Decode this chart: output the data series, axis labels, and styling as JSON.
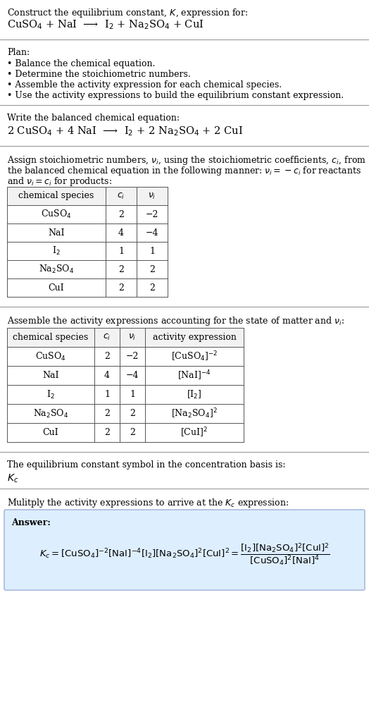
{
  "title_line1": "Construct the equilibrium constant, $K$, expression for:",
  "title_line2": "CuSO$_4$ + NaI  ⟶  I$_2$ + Na$_2$SO$_4$ + CuI",
  "plan_header": "Plan:",
  "plan_items": [
    "• Balance the chemical equation.",
    "• Determine the stoichiometric numbers.",
    "• Assemble the activity expression for each chemical species.",
    "• Use the activity expressions to build the equilibrium constant expression."
  ],
  "balanced_header": "Write the balanced chemical equation:",
  "balanced_eq": "2 CuSO$_4$ + 4 NaI  ⟶  I$_2$ + 2 Na$_2$SO$_4$ + 2 CuI",
  "stoich_header1": "Assign stoichiometric numbers, $\\nu_i$, using the stoichiometric coefficients, $c_i$, from",
  "stoich_header2": "the balanced chemical equation in the following manner: $\\nu_i = -c_i$ for reactants",
  "stoich_header3": "and $\\nu_i = c_i$ for products:",
  "table1_cols": [
    "chemical species",
    "$c_i$",
    "$\\nu_i$"
  ],
  "table1_rows": [
    [
      "CuSO$_4$",
      "2",
      "−2"
    ],
    [
      "NaI",
      "4",
      "−4"
    ],
    [
      "I$_2$",
      "1",
      "1"
    ],
    [
      "Na$_2$SO$_4$",
      "2",
      "2"
    ],
    [
      "CuI",
      "2",
      "2"
    ]
  ],
  "activity_header": "Assemble the activity expressions accounting for the state of matter and $\\nu_i$:",
  "table2_cols": [
    "chemical species",
    "$c_i$",
    "$\\nu_i$",
    "activity expression"
  ],
  "table2_rows": [
    [
      "CuSO$_4$",
      "2",
      "−2",
      "[CuSO$_4$]$^{-2}$"
    ],
    [
      "NaI",
      "4",
      "−4",
      "[NaI]$^{-4}$"
    ],
    [
      "I$_2$",
      "1",
      "1",
      "[I$_2$]"
    ],
    [
      "Na$_2$SO$_4$",
      "2",
      "2",
      "[Na$_2$SO$_4$]$^2$"
    ],
    [
      "CuI",
      "2",
      "2",
      "[CuI]$^2$"
    ]
  ],
  "kc_header": "The equilibrium constant symbol in the concentration basis is:",
  "kc_symbol": "$K_c$",
  "multiply_header": "Mulitply the activity expressions to arrive at the $K_c$ expression:",
  "answer_label": "Answer:",
  "bg_color": "#ffffff",
  "table_bg": "#ffffff",
  "answer_box_bg": "#ddeeff",
  "answer_box_border": "#aabbdd",
  "separator_color": "#999999",
  "font_size": 9.0,
  "table_font": 9.0
}
